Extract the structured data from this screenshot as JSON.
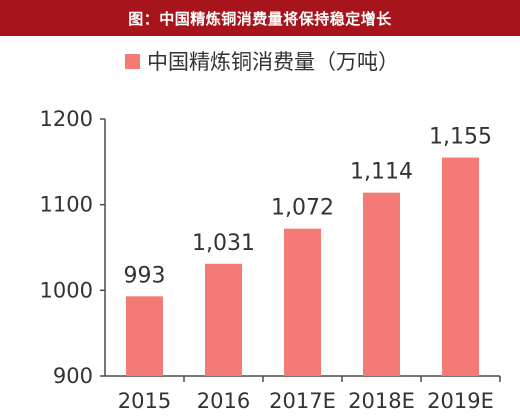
{
  "banner": {
    "title": "图：中国精炼铜消费量将保持稳定增长"
  },
  "chart_data": {
    "type": "bar",
    "categories": [
      "2015",
      "2016",
      "2017E",
      "2018E",
      "2019E"
    ],
    "series": [
      {
        "name": "中国精炼铜消费量（万吨）",
        "values": [
          993,
          1031,
          1072,
          1114,
          1155
        ],
        "labels": [
          "993",
          "1,031",
          "1,072",
          "1,114",
          "1,155"
        ]
      }
    ],
    "ylim": [
      900,
      1200
    ],
    "yticks": [
      "900",
      "1000",
      "1100",
      "1200"
    ],
    "legend": "top",
    "grid": false,
    "bar_color": "#f47a76",
    "axis_color": "#4a4a4a"
  }
}
